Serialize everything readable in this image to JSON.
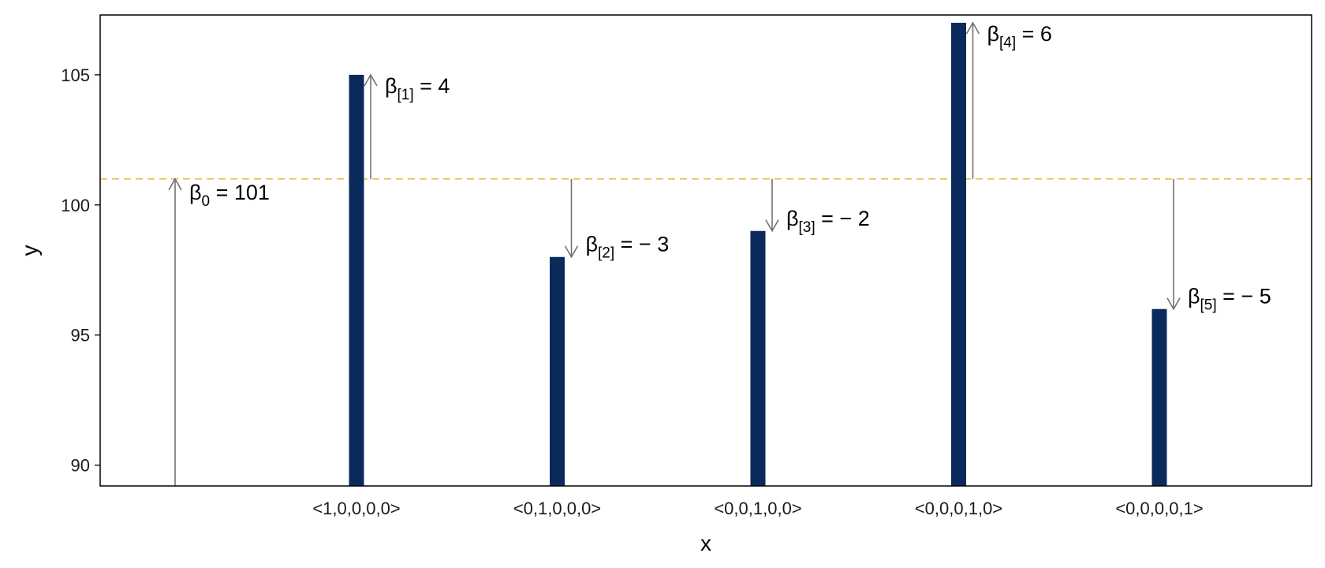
{
  "chart_data": {
    "type": "bar",
    "xlabel": "x",
    "ylabel": "y",
    "ylim": [
      89.2,
      107.3
    ],
    "yticks": [
      90,
      95,
      100,
      105
    ],
    "categories": [
      "<1,0,0,0,0>",
      "<0,1,0,0,0>",
      "<0,0,1,0,0>",
      "<0,0,0,1,0>",
      "<0,0,0,0,1>"
    ],
    "values": [
      105,
      98,
      99,
      107,
      96
    ],
    "baseline": 101,
    "grid": false,
    "colors": {
      "bar": "#0b2a5c",
      "baseline": "#e8c04a",
      "arrow": "#737373",
      "frame": "#000000"
    },
    "intercept_annotation": {
      "symbol": "β",
      "subscript": "0",
      "rest": " = 101",
      "from": 89.2,
      "to": 101
    },
    "coefficient_annotations": [
      {
        "symbol": "β",
        "subscript": "[1]",
        "rest": " = 4"
      },
      {
        "symbol": "β",
        "subscript": "[2]",
        "rest": " = − 3"
      },
      {
        "symbol": "β",
        "subscript": "[3]",
        "rest": " = − 2"
      },
      {
        "symbol": "β",
        "subscript": "[4]",
        "rest": " = 6"
      },
      {
        "symbol": "β",
        "subscript": "[5]",
        "rest": " = − 5"
      }
    ]
  }
}
